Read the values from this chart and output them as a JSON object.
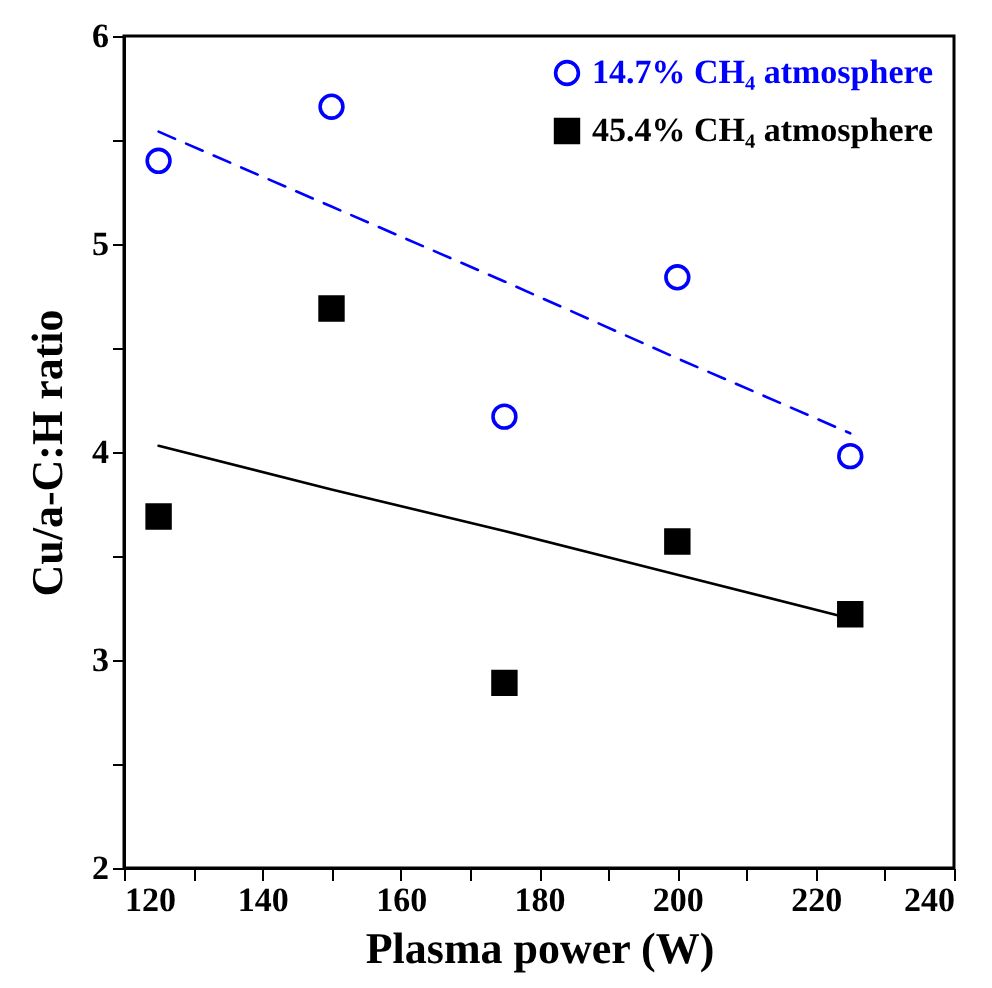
{
  "chart_data": {
    "type": "scatter",
    "xlabel": "Plasma power (W)",
    "ylabel": "Cu/a-C:H ratio",
    "x": [
      125,
      150,
      175,
      200,
      225
    ],
    "series": [
      {
        "name": "14.7% CH₄ atmosphere",
        "color": "#0000ff",
        "marker": "circle",
        "values": [
          5.4,
          5.66,
          4.17,
          4.84,
          3.98
        ]
      },
      {
        "name": "45.4% CH₄ atmosphere",
        "color": "#000000",
        "marker": "square",
        "values": [
          3.69,
          4.69,
          2.89,
          3.57,
          3.22
        ]
      },
      {
        "type": "line",
        "color": "#0000ff",
        "line_style": "dashed",
        "values": [
          5.54,
          5.18,
          4.82,
          4.45,
          4.09
        ]
      },
      {
        "type": "line",
        "color": "#000000",
        "line_style": "solid",
        "values": [
          4.03,
          3.82,
          3.62,
          3.41,
          3.2
        ]
      }
    ],
    "xlim": [
      120,
      240
    ],
    "xticks": [
      120,
      {
        "value": 130,
        "label": null
      },
      140,
      {
        "value": 150,
        "label": null
      },
      160,
      {
        "value": 170,
        "label": null
      },
      180,
      {
        "value": 190,
        "label": null
      },
      200,
      {
        "value": 210,
        "label": null
      },
      220,
      {
        "value": 230,
        "label": null
      },
      240
    ],
    "ylim": [
      2,
      6
    ],
    "yticks": [
      2,
      {
        "value": 2.5,
        "label": null
      },
      3,
      {
        "value": 3.5,
        "label": null
      },
      4,
      {
        "value": 4.5,
        "label": null
      },
      5,
      {
        "value": 5.5,
        "label": null
      },
      6
    ],
    "grid": false,
    "legend": "top right"
  }
}
